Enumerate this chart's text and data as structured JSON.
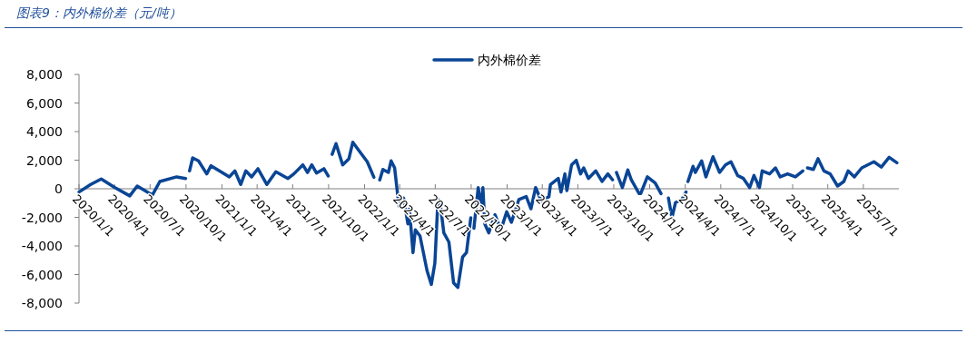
{
  "chart_data": {
    "type": "line",
    "title": "图表9：内外棉价差（元/吨）",
    "legend": "top",
    "x": [
      "2020-01-01",
      "2020-01-31",
      "2020-02-27",
      "2020-04-01",
      "2020-05-10",
      "2020-05-29",
      "2020-07-07",
      "2020-07-26",
      "2020-09-07",
      "2020-09-30",
      "2020-10-05",
      "2020-10-10",
      "2020-10-18",
      "2020-11-02",
      "2020-11-23",
      "2020-12-04",
      "2021-01-01",
      "2021-01-20",
      "2021-02-03",
      "2021-02-18",
      "2021-03-03",
      "2021-03-18",
      "2021-04-03",
      "2021-04-26",
      "2021-05-19",
      "2021-06-19",
      "2021-07-04",
      "2021-07-27",
      "2021-08-08",
      "2021-08-19",
      "2021-08-31",
      "2021-09-19",
      "2021-09-30",
      "2021-10-05",
      "2021-10-10",
      "2021-10-20",
      "2021-11-06",
      "2021-11-22",
      "2021-12-02",
      "2021-12-16",
      "2022-01-08",
      "2022-01-25",
      "2022-02-02",
      "2022-02-09",
      "2022-02-17",
      "2022-03-03",
      "2022-03-10",
      "2022-03-19",
      "2022-03-30",
      "2022-04-11",
      "2022-04-22",
      "2022-04-26",
      "2022-05-05",
      "2022-05-11",
      "2022-05-23",
      "2022-06-10",
      "2022-06-21",
      "2022-06-30",
      "2022-07-08",
      "2022-07-13",
      "2022-07-23",
      "2022-08-05",
      "2022-08-17",
      "2022-08-28",
      "2022-09-09",
      "2022-09-19",
      "2022-09-30",
      "2022-10-04",
      "2022-10-08",
      "2022-10-19",
      "2022-10-27",
      "2022-10-31",
      "2022-11-05",
      "2022-11-15",
      "2022-12-01",
      "2022-12-16",
      "2022-12-31",
      "2023-01-12",
      "2023-01-31",
      "2023-02-19",
      "2023-03-03",
      "2023-03-15",
      "2023-03-30",
      "2023-04-18",
      "2023-04-22",
      "2023-05-12",
      "2023-05-19",
      "2023-05-29",
      "2023-06-03",
      "2023-06-15",
      "2023-06-27",
      "2023-07-08",
      "2023-07-16",
      "2023-07-28",
      "2023-08-16",
      "2023-09-01",
      "2023-09-16",
      "2023-09-28",
      "2023-10-03",
      "2023-10-08",
      "2023-10-23",
      "2023-11-06",
      "2023-11-15",
      "2023-12-05",
      "2023-12-09",
      "2023-12-26",
      "2024-01-15",
      "2024-01-30",
      "2024-02-10",
      "2024-02-18",
      "2024-02-27",
      "2024-03-07",
      "2024-03-23",
      "2024-04-03",
      "2024-04-05",
      "2024-04-08",
      "2024-04-21",
      "2024-04-27",
      "2024-05-13",
      "2024-05-24",
      "2024-06-11",
      "2024-06-28",
      "2024-07-13",
      "2024-07-27",
      "2024-08-13",
      "2024-08-28",
      "2024-09-13",
      "2024-09-24",
      "2024-10-08",
      "2024-10-15",
      "2024-11-03",
      "2024-11-18",
      "2024-11-30",
      "2024-12-19",
      "2025-01-08",
      "2025-01-27",
      "2025-02-01",
      "2025-02-08",
      "2025-02-23",
      "2025-03-07",
      "2025-03-22",
      "2025-04-07",
      "2025-04-26",
      "2025-05-12",
      "2025-05-23",
      "2025-06-08",
      "2025-06-27",
      "2025-07-28",
      "2025-08-16",
      "2025-09-05",
      "2025-09-25"
    ],
    "series": [
      {
        "name": "内外棉价差",
        "color": "#0a4595",
        "values": [
          -230,
          300,
          680,
          90,
          -500,
          190,
          -440,
          510,
          830,
          720,
          null,
          1250,
          2160,
          1950,
          1040,
          1610,
          1140,
          830,
          1250,
          300,
          1250,
          830,
          1400,
          300,
          1190,
          720,
          1040,
          1670,
          1140,
          1670,
          1100,
          1400,
          890,
          null,
          2410,
          3160,
          1670,
          2100,
          3260,
          2730,
          1890,
          800,
          null,
          620,
          1350,
          1140,
          1950,
          1460,
          -1190,
          -650,
          -2460,
          -1400,
          -4470,
          -2880,
          -3300,
          -5730,
          -6690,
          -5210,
          -760,
          -870,
          -3090,
          -3730,
          -6590,
          -6900,
          -4780,
          -4470,
          -2030,
          null,
          -2770,
          80,
          -1290,
          80,
          -2460,
          -3090,
          -1820,
          -2880,
          -1610,
          -2350,
          -760,
          -550,
          -1400,
          80,
          -870,
          -550,
          300,
          720,
          -230,
          1040,
          -130,
          1670,
          1990,
          1040,
          1460,
          720,
          1250,
          510,
          1040,
          620,
          null,
          1140,
          80,
          1320,
          620,
          -340,
          -340,
          830,
          400,
          -340,
          null,
          -650,
          -2030,
          -970,
          -760,
          -230,
          null,
          510,
          1570,
          1140,
          1950,
          830,
          2240,
          1140,
          1670,
          1890,
          930,
          720,
          80,
          930,
          80,
          1250,
          1040,
          1460,
          830,
          1040,
          830,
          1250,
          null,
          1460,
          1350,
          2100,
          1250,
          1040,
          190,
          510,
          1250,
          830,
          1460,
          1890,
          1520,
          2200,
          1820
        ]
      }
    ],
    "ylim": [
      -8000,
      8000
    ],
    "yticks": [
      {
        "value": -8000,
        "label": "-8,000"
      },
      {
        "value": -6000,
        "label": "-6,000"
      },
      {
        "value": -4000,
        "label": "-4,000"
      },
      {
        "value": -2000,
        "label": "-2,000"
      },
      0,
      {
        "value": 2000,
        "label": "2,000"
      },
      {
        "value": 4000,
        "label": "4,000"
      },
      {
        "value": 6000,
        "label": "6,000"
      },
      {
        "value": 8000,
        "label": "8,000"
      }
    ],
    "xlim": [
      "2020-01-01",
      "2025-09-30"
    ],
    "xticks": [
      {
        "value": "2020-01-01",
        "label": "2020/1/1"
      },
      {
        "value": "2020-04-01",
        "label": "2020/4/1"
      },
      {
        "value": "2020-07-01",
        "label": "2020/7/1"
      },
      {
        "value": "2020-10-01",
        "label": "2020/10/1"
      },
      {
        "value": "2021-01-01",
        "label": "2021/1/1"
      },
      {
        "value": "2021-04-01",
        "label": "2021/4/1"
      },
      {
        "value": "2021-07-01",
        "label": "2021/7/1"
      },
      {
        "value": "2021-10-01",
        "label": "2021/10/1"
      },
      {
        "value": "2022-01-01",
        "label": "2022/1/1"
      },
      {
        "value": "2022-04-01",
        "label": "2022/4/1"
      },
      {
        "value": "2022-07-01",
        "label": "2022/7/1"
      },
      {
        "value": "2022-10-01",
        "label": "2022/10/1"
      },
      {
        "value": "2023-01-01",
        "label": "2023/1/1"
      },
      {
        "value": "2023-04-01",
        "label": "2023/4/1"
      },
      {
        "value": "2023-07-01",
        "label": "2023/7/1"
      },
      {
        "value": "2023-10-01",
        "label": "2023/10/1"
      },
      {
        "value": "2024-01-01",
        "label": "2024/1/1"
      },
      {
        "value": "2024-04-01",
        "label": "2024/4/1"
      },
      {
        "value": "2024-07-01",
        "label": "2024/7/1"
      },
      {
        "value": "2024-10-01",
        "label": "2024/10/1"
      },
      {
        "value": "2025-01-01",
        "label": "2025/1/1"
      },
      {
        "value": "2025-04-01",
        "label": "2025/4/1"
      },
      {
        "value": "2025-07-01",
        "label": "2025/7/1"
      }
    ],
    "grid": false
  }
}
